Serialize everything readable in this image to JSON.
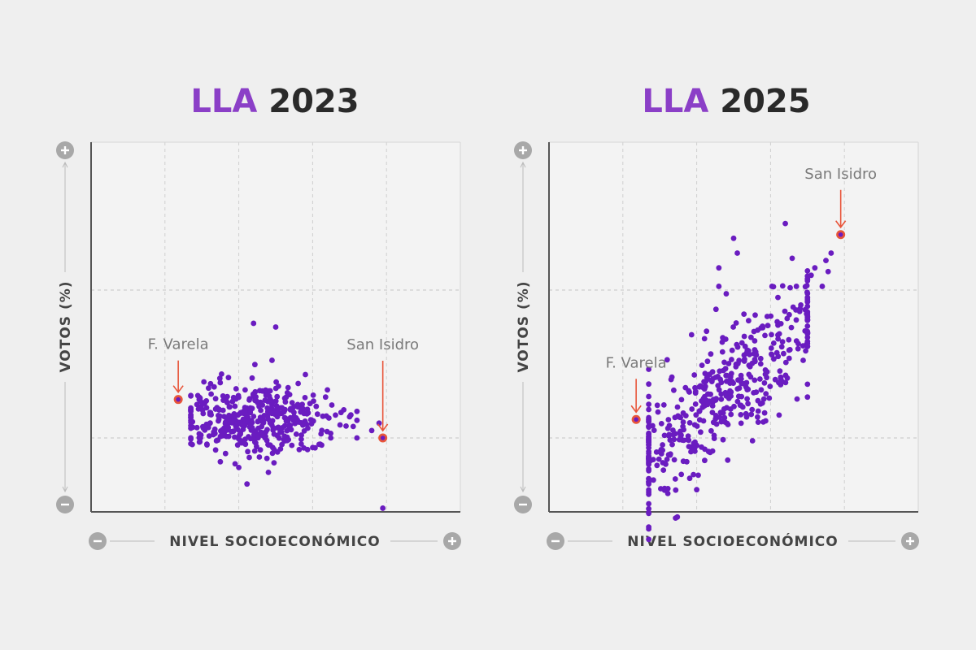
{
  "colors": {
    "accent": "#8b3fc7",
    "point": "#6a1cc0",
    "highlight": "#e8553a",
    "title_dark": "#2a2a2a",
    "axis_gray": "#a8a8a8",
    "plot_bg": "#f3f3f3"
  },
  "axis_labels": {
    "x": "NIVEL SOCIOECONÓMICO",
    "y": "VOTOS (%)",
    "plus": "+",
    "minus": "−"
  },
  "chart_data": [
    {
      "type": "scatter",
      "title_party": "LLA",
      "title_year": "2023",
      "xlabel": "NIVEL SOCIOECONÓMICO",
      "ylabel": "VOTOS (%)",
      "xlim": [
        0,
        5
      ],
      "ylim": [
        0,
        5
      ],
      "grid": true,
      "cluster": {
        "cx": 2.2,
        "cy": 1.25,
        "sx": 0.55,
        "sy": 0.28,
        "n": 420,
        "xmin": 1.35,
        "xmax": 3.6,
        "seed": 11
      },
      "outliers": [
        [
          2.2,
          2.55
        ],
        [
          2.5,
          2.5
        ],
        [
          2.45,
          2.05
        ],
        [
          3.2,
          1.65
        ],
        [
          1.95,
          0.65
        ],
        [
          2.0,
          0.6
        ],
        [
          3.9,
          1.2
        ],
        [
          3.8,
          1.1
        ],
        [
          3.6,
          1.0
        ],
        [
          3.95,
          0.05
        ]
      ],
      "highlights": [
        {
          "label": "F. Varela",
          "x": 1.18,
          "y": 1.52
        },
        {
          "label": "San Isidro",
          "x": 3.95,
          "y": 1.0
        }
      ]
    },
    {
      "type": "scatter",
      "title_party": "LLA",
      "title_year": "2025",
      "xlabel": "NIVEL SOCIOECONÓMICO",
      "ylabel": "VOTOS (%)",
      "xlim": [
        0,
        5
      ],
      "ylim": [
        0,
        5
      ],
      "grid": true,
      "cluster": {
        "cx": 2.35,
        "cy": 1.6,
        "sx": 0.85,
        "sy": 0.42,
        "n": 460,
        "xmin": 1.35,
        "xmax": 3.5,
        "slope": 0.6,
        "seed": 29
      },
      "outliers": [
        [
          2.5,
          3.7
        ],
        [
          2.55,
          3.5
        ],
        [
          2.3,
          3.3
        ],
        [
          2.3,
          3.05
        ],
        [
          2.4,
          2.95
        ],
        [
          3.2,
          3.9
        ],
        [
          3.02,
          3.05
        ],
        [
          3.1,
          2.9
        ],
        [
          2.0,
          0.3
        ],
        [
          2.42,
          0.7
        ],
        [
          3.35,
          3.05
        ],
        [
          3.55,
          3.2
        ],
        [
          3.6,
          3.3
        ],
        [
          3.75,
          3.4
        ],
        [
          3.82,
          3.5
        ],
        [
          3.7,
          3.05
        ],
        [
          3.78,
          3.25
        ],
        [
          3.5,
          2.9
        ],
        [
          3.4,
          2.75
        ]
      ],
      "highlights": [
        {
          "label": "F. Varela",
          "x": 1.18,
          "y": 1.25
        },
        {
          "label": "San Isidro",
          "x": 3.95,
          "y": 3.75
        }
      ]
    }
  ]
}
